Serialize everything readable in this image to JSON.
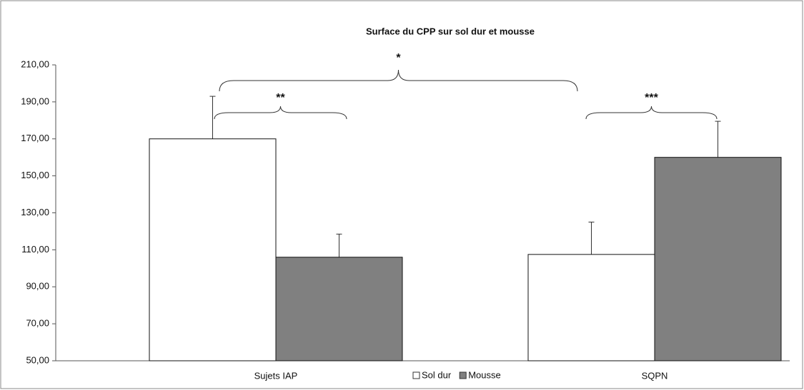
{
  "chart_data": {
    "type": "bar",
    "title": "Surface du CPP sur sol dur et mousse",
    "categories": [
      "Sujets IAP",
      "SQPN"
    ],
    "series": [
      {
        "name": "Sol dur",
        "color": "#ffffff",
        "values": [
          170,
          107.5
        ],
        "errors": [
          23,
          17.5
        ]
      },
      {
        "name": "Mousse",
        "color": "#808080",
        "values": [
          106,
          160
        ],
        "errors": [
          12.5,
          19.5
        ]
      }
    ],
    "ylim": [
      50,
      210
    ],
    "yticks": [
      {
        "value": 50,
        "label": "50,00"
      },
      {
        "value": 70,
        "label": "70,00"
      },
      {
        "value": 90,
        "label": "90,00"
      },
      {
        "value": 110,
        "label": "110,00"
      },
      {
        "value": 130,
        "label": "130,00"
      },
      {
        "value": 150,
        "label": "150,00"
      },
      {
        "value": 170,
        "label": "170,00"
      },
      {
        "value": 190,
        "label": "190,00"
      },
      {
        "value": 210,
        "label": "210,00"
      }
    ],
    "annotations": [
      "**",
      "***",
      "*"
    ],
    "legend": "bottom",
    "grid": false
  }
}
